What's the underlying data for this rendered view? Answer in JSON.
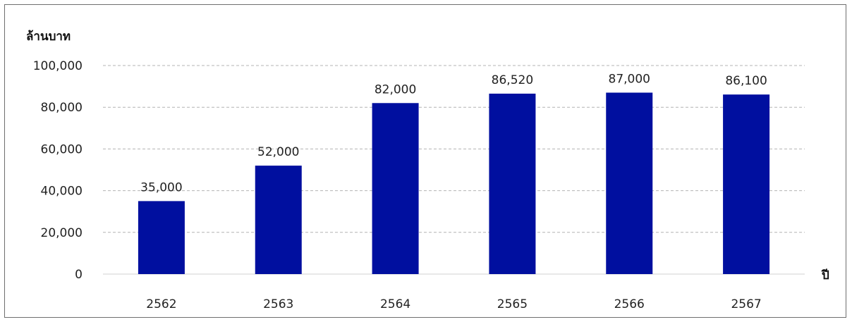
{
  "chart_data": {
    "type": "bar",
    "title": "",
    "ylabel": "ล้านบาท",
    "xlabel": "ปี",
    "categories": [
      "2562",
      "2563",
      "2564",
      "2565",
      "2566",
      "2567"
    ],
    "values": [
      35000,
      52000,
      82000,
      86520,
      87000,
      86100
    ],
    "value_labels": [
      "35,000",
      "52,000",
      "82,000",
      "86,520",
      "87,000",
      "86,100"
    ],
    "yticks": [
      0,
      20000,
      40000,
      60000,
      80000,
      100000
    ],
    "ytick_labels": [
      "0",
      "20,000",
      "40,000",
      "60,000",
      "80,000",
      "100,000"
    ],
    "ylim": [
      0,
      100000
    ],
    "grid": true,
    "legend": "none",
    "bar_color": "#000f9f",
    "grid_color": "#b3b3b3"
  }
}
